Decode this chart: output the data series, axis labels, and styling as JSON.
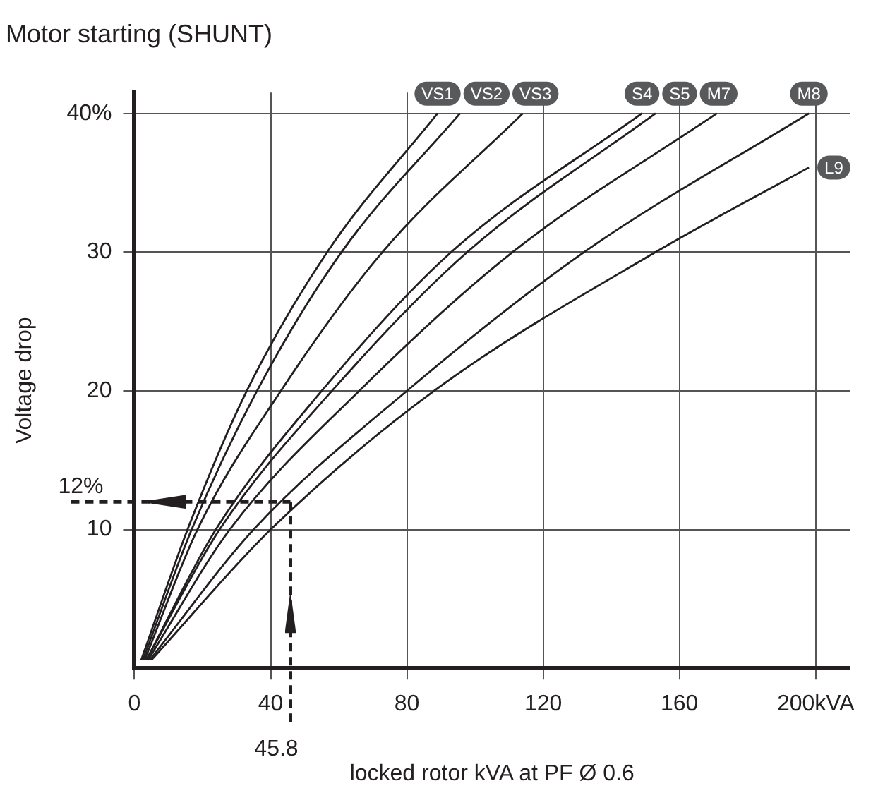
{
  "chart_data": {
    "type": "line",
    "title": "Motor starting (SHUNT)",
    "xlabel": "locked rotor kVA at PF Ø 0.6",
    "ylabel": "Voltage drop",
    "xlim": [
      0,
      210
    ],
    "ylim": [
      0,
      41.5
    ],
    "xticks": [
      0,
      40,
      80,
      120,
      160,
      {
        "value": 200,
        "label": "200kVA"
      }
    ],
    "yticks": [
      10,
      20,
      30,
      {
        "value": 40,
        "label": "40%"
      }
    ],
    "grid": true,
    "legend": false,
    "marker": "none",
    "line_style": "solid",
    "series": [
      {
        "name": "VS1",
        "color": "#231f20",
        "x": [
          2,
          15.6,
          33,
          56.6,
          89
        ],
        "values": [
          0.6,
          10,
          20,
          30,
          40
        ]
      },
      {
        "name": "VS2",
        "color": "#231f20",
        "x": [
          2.5,
          16.8,
          36,
          60.8,
          95.6
        ],
        "values": [
          0.6,
          10,
          20,
          30,
          40
        ]
      },
      {
        "name": "VS3",
        "color": "#231f20",
        "x": [
          3,
          18.5,
          43,
          72.8,
          114
        ],
        "values": [
          0.6,
          10,
          20,
          30,
          40
        ]
      },
      {
        "name": "S4",
        "color": "#231f20",
        "x": [
          3.5,
          23.9,
          55,
          93,
          149
        ],
        "values": [
          0.6,
          10,
          20,
          30,
          40
        ]
      },
      {
        "name": "S5",
        "color": "#231f20",
        "x": [
          3.5,
          25,
          58,
          97.7,
          153
        ],
        "values": [
          0.6,
          10,
          20,
          30,
          40
        ]
      },
      {
        "name": "M7",
        "color": "#231f20",
        "x": [
          4,
          28,
          66,
          111,
          171
        ],
        "values": [
          0.6,
          10,
          20,
          30,
          40
        ]
      },
      {
        "name": "M8",
        "color": "#231f20",
        "x": [
          4.5,
          35,
          80,
          132,
          198
        ],
        "values": [
          0.6,
          10,
          20,
          30,
          40
        ]
      },
      {
        "name": "L9",
        "color": "#231f20",
        "x": [
          5,
          40,
          88,
          153,
          198
        ],
        "values": [
          0.6,
          10,
          20,
          30,
          36.1
        ]
      }
    ],
    "ref_lines": [
      {
        "axis": "y",
        "value": 12,
        "label": "12%",
        "color": "#231f20",
        "line_style": "dashed"
      },
      {
        "axis": "x",
        "value": 45.8,
        "label": "45.8",
        "color": "#231f20",
        "line_style": "dashed"
      }
    ]
  }
}
